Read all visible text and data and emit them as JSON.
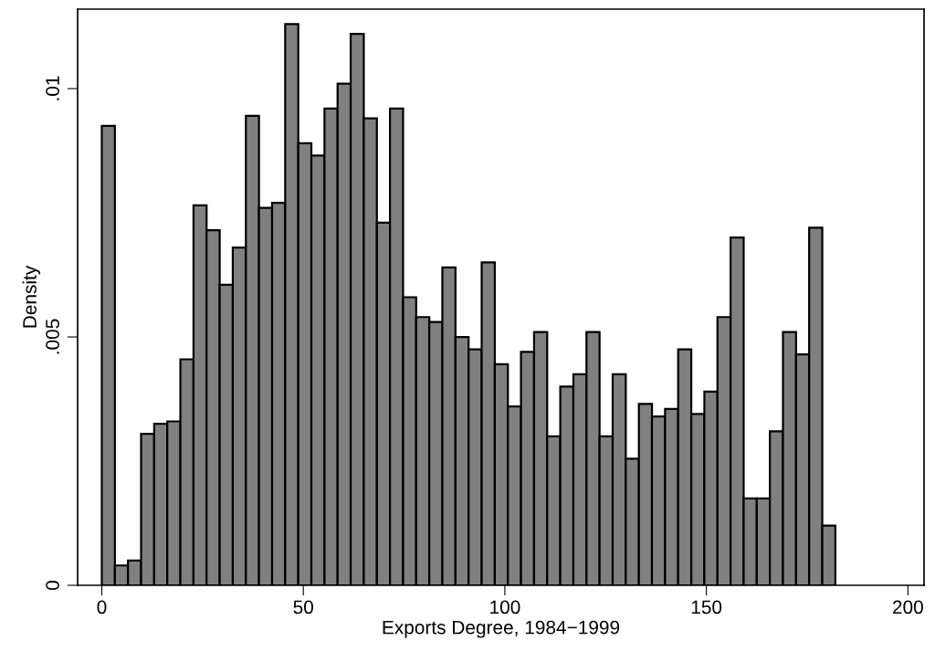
{
  "chart_data": {
    "type": "histogram",
    "xlabel": "Exports Degree, 1984−1999",
    "ylabel": "Density",
    "bins": [
      0,
      3.25,
      6.5,
      9.75,
      13,
      16.25,
      19.5,
      22.75,
      26,
      29.25,
      32.5,
      35.75,
      39,
      42.25,
      45.5,
      48.75,
      52,
      55.25,
      58.5,
      61.75,
      65,
      68.25,
      71.5,
      74.75,
      78,
      81.25,
      84.5,
      87.75,
      91,
      94.25,
      97.5,
      100.75,
      104,
      107.25,
      110.5,
      113.75,
      117,
      120.25,
      123.5,
      126.75,
      130,
      133.25,
      136.5,
      139.75,
      143,
      146.25,
      149.5,
      152.75,
      156,
      159.25,
      162.5,
      165.75,
      169,
      172.25,
      175.5,
      178.75,
      182
    ],
    "values": [
      0.00925,
      0.0004,
      0.0005,
      0.00305,
      0.00325,
      0.0033,
      0.00455,
      0.00765,
      0.00715,
      0.00605,
      0.0068,
      0.00945,
      0.0076,
      0.0077,
      0.0113,
      0.0089,
      0.00865,
      0.0096,
      0.0101,
      0.0111,
      0.0094,
      0.0073,
      0.0096,
      0.0058,
      0.0054,
      0.0053,
      0.0064,
      0.005,
      0.00475,
      0.0065,
      0.00445,
      0.0036,
      0.0047,
      0.0051,
      0.003,
      0.004,
      0.00425,
      0.0051,
      0.003,
      0.00425,
      0.00255,
      0.00365,
      0.0034,
      0.00355,
      0.00475,
      0.00345,
      0.0039,
      0.0054,
      0.007,
      0.00175,
      0.00175,
      0.0031,
      0.0051,
      0.00465,
      0.0072,
      0.0012
    ],
    "color": "#808080",
    "xlim": [
      -6,
      204
    ],
    "xticks": [
      0,
      50,
      100,
      150,
      200
    ],
    "ylim": [
      0,
      0.0116
    ],
    "yticks": [
      {
        "value": 0,
        "label": "0"
      },
      {
        "value": 0.005,
        "label": ".005"
      },
      {
        "value": 0.01,
        "label": ".01"
      }
    ],
    "grid": false
  }
}
